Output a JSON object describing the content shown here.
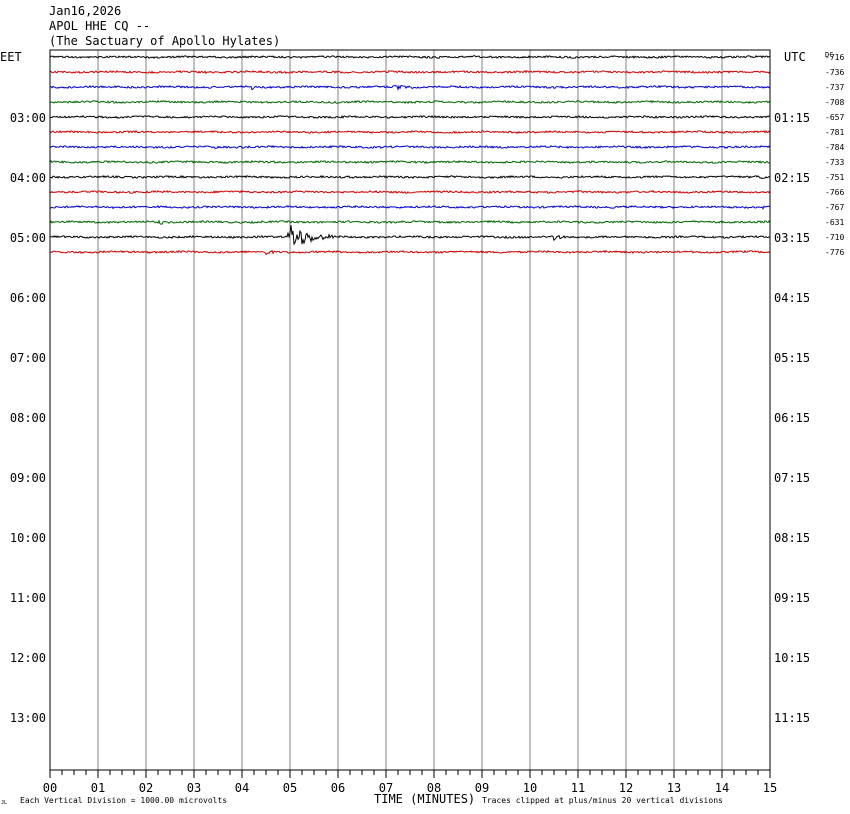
{
  "header": {
    "date": "Jan16,2026",
    "station": "APOL HHE CQ --",
    "site": "(The Sactuary of Apollo Hylates)"
  },
  "colors": {
    "trace_cycle": [
      "#000000",
      "#cc0000",
      "#0000cc",
      "#006600"
    ],
    "grid": "#808080",
    "axis": "#000000"
  },
  "chart_data": {
    "type": "line",
    "left_label": "EET",
    "right_label": "UTC",
    "dc_label": "DC",
    "left_hour_labels": [
      "03:00",
      "04:00",
      "05:00",
      "06:00",
      "07:00",
      "08:00",
      "09:00",
      "10:00",
      "11:00",
      "12:00",
      "13:00"
    ],
    "right_hour_labels": [
      "01:15",
      "02:15",
      "03:15",
      "04:15",
      "05:15",
      "06:15",
      "07:15",
      "08:15",
      "09:15",
      "10:15",
      "11:15"
    ],
    "x_tick_labels": [
      "00",
      "01",
      "02",
      "03",
      "04",
      "05",
      "06",
      "07",
      "08",
      "09",
      "10",
      "11",
      "12",
      "13",
      "14",
      "15"
    ],
    "xlabel": "TIME (MINUTES)",
    "xlim": [
      0,
      15
    ],
    "grid_vertical": true,
    "traces_per_hour": 4,
    "dc_offsets": [
      "-716",
      "-736",
      "-737",
      "-708",
      "-657",
      "-781",
      "-784",
      "-733",
      "-751",
      "-766",
      "-767",
      "-631",
      "-710",
      "-776"
    ],
    "events": [
      {
        "trace": 0,
        "minute": 3.0,
        "amp": 2,
        "dur": 0.2
      },
      {
        "trace": 1,
        "minute": 3.2,
        "amp": 4,
        "dur": 0.1
      },
      {
        "trace": 2,
        "minute": 4.2,
        "amp": 4,
        "dur": 0.1
      },
      {
        "trace": 2,
        "minute": 7.2,
        "amp": 3,
        "dur": 0.7
      },
      {
        "trace": 6,
        "minute": 3.4,
        "amp": 2,
        "dur": 0.4
      },
      {
        "trace": 8,
        "minute": 6.2,
        "amp": 3,
        "dur": 0.1
      },
      {
        "trace": 8,
        "minute": 14.7,
        "amp": 3,
        "dur": 0.4
      },
      {
        "trace": 10,
        "minute": 1.3,
        "amp": 2,
        "dur": 0.4
      },
      {
        "trace": 10,
        "minute": 14.9,
        "amp": 4,
        "dur": 0.1
      },
      {
        "trace": 11,
        "minute": 2.3,
        "amp": 4,
        "dur": 0.1
      },
      {
        "trace": 12,
        "minute": 5.0,
        "amp": 14,
        "dur": 0.9
      },
      {
        "trace": 12,
        "minute": 10.5,
        "amp": 5,
        "dur": 0.3
      },
      {
        "trace": 13,
        "minute": 4.5,
        "amp": 4,
        "dur": 0.3
      }
    ],
    "footer_left": "Each Vertical Division = 1000.00 microvolts",
    "footer_right": "Traces clipped at plus/minus 20 vertical divisions"
  }
}
